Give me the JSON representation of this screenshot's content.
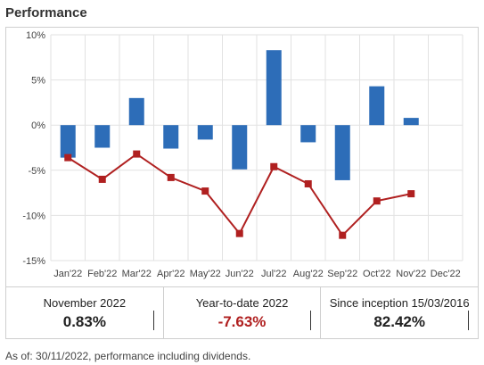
{
  "header": {
    "title": "Performance"
  },
  "chart_data": {
    "type": "bar",
    "categories": [
      "Jan'22",
      "Feb'22",
      "Mar'22",
      "Apr'22",
      "May'22",
      "Jun'22",
      "Jul'22",
      "Aug'22",
      "Sep'22",
      "Oct'22",
      "Nov'22",
      "Dec'22"
    ],
    "ylim": [
      -15,
      10
    ],
    "yticks": [
      -15,
      -10,
      -5,
      0,
      5,
      10
    ],
    "ytick_labels": [
      "-15%",
      "-10%",
      "-5%",
      "0%",
      "5%",
      "10%"
    ],
    "grid": true,
    "series": [
      {
        "type": "bar",
        "color": "#2d6db8",
        "values": [
          -3.6,
          -2.5,
          3.0,
          -2.6,
          -1.6,
          -4.9,
          8.3,
          -1.9,
          -6.1,
          4.3,
          0.8,
          null
        ]
      },
      {
        "type": "line",
        "color": "#b02020",
        "values": [
          -3.6,
          -6.0,
          -3.2,
          -5.8,
          -7.3,
          -12.0,
          -4.6,
          -6.5,
          -12.2,
          -8.4,
          -7.6,
          null
        ]
      }
    ]
  },
  "stats": [
    {
      "label": "November 2022",
      "value": "0.83%",
      "tone": "pos"
    },
    {
      "label": "Year-to-date 2022",
      "value": "-7.63%",
      "tone": "neg"
    },
    {
      "label": "Since inception 15/03/2016",
      "value": "82.42%",
      "tone": "pos"
    }
  ],
  "footnote": "As of: 30/11/2022, performance including dividends."
}
